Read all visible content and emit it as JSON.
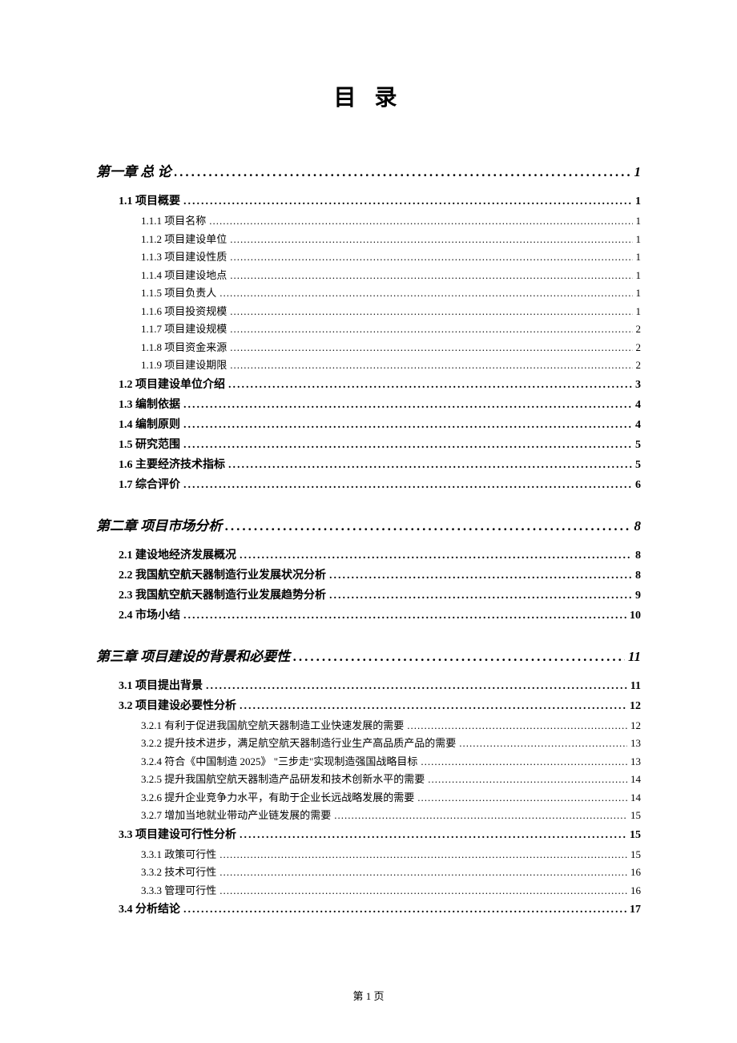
{
  "title": "目 录",
  "footer": "第 1 页",
  "toc": [
    {
      "level": "chapter",
      "label": "第一章 总 论",
      "page": "1"
    },
    {
      "level": "section",
      "label": "1.1 项目概要",
      "page": "1"
    },
    {
      "level": "sub",
      "label": "1.1.1 项目名称",
      "page": "1"
    },
    {
      "level": "sub",
      "label": "1.1.2 项目建设单位",
      "page": "1"
    },
    {
      "level": "sub",
      "label": "1.1.3 项目建设性质",
      "page": "1"
    },
    {
      "level": "sub",
      "label": "1.1.4 项目建设地点",
      "page": "1"
    },
    {
      "level": "sub",
      "label": "1.1.5 项目负责人",
      "page": "1"
    },
    {
      "level": "sub",
      "label": "1.1.6 项目投资规模",
      "page": "1"
    },
    {
      "level": "sub",
      "label": "1.1.7 项目建设规模",
      "page": "2"
    },
    {
      "level": "sub",
      "label": "1.1.8 项目资金来源",
      "page": "2"
    },
    {
      "level": "sub",
      "label": "1.1.9 项目建设期限",
      "page": "2"
    },
    {
      "level": "section",
      "label": "1.2 项目建设单位介绍",
      "page": "3"
    },
    {
      "level": "section",
      "label": "1.3 编制依据",
      "page": "4"
    },
    {
      "level": "section",
      "label": "1.4 编制原则",
      "page": "4"
    },
    {
      "level": "section",
      "label": "1.5 研究范围",
      "page": "5"
    },
    {
      "level": "section",
      "label": "1.6 主要经济技术指标",
      "page": "5"
    },
    {
      "level": "section",
      "label": "1.7 综合评价",
      "page": "6"
    },
    {
      "level": "chapter",
      "label": "第二章 项目市场分析",
      "page": "8"
    },
    {
      "level": "section",
      "label": "2.1 建设地经济发展概况",
      "page": "8"
    },
    {
      "level": "section",
      "label": "2.2 我国航空航天器制造行业发展状况分析",
      "page": "8"
    },
    {
      "level": "section",
      "label": "2.3 我国航空航天器制造行业发展趋势分析",
      "page": "9"
    },
    {
      "level": "section",
      "label": "2.4 市场小结",
      "page": "10"
    },
    {
      "level": "chapter",
      "label": "第三章 项目建设的背景和必要性",
      "page": "11"
    },
    {
      "level": "section",
      "label": "3.1 项目提出背景",
      "page": "11"
    },
    {
      "level": "section",
      "label": "3.2 项目建设必要性分析",
      "page": "12"
    },
    {
      "level": "sub",
      "label": "3.2.1 有利于促进我国航空航天器制造工业快速发展的需要",
      "page": "12"
    },
    {
      "level": "sub",
      "label": "3.2.2 提升技术进步，满足航空航天器制造行业生产高品质产品的需要",
      "page": "13"
    },
    {
      "level": "sub",
      "label": "3.2.4 符合《中国制造 2025》 \"三步走\"实现制造强国战略目标",
      "page": "13"
    },
    {
      "level": "sub",
      "label": "3.2.5 提升我国航空航天器制造产品研发和技术创新水平的需要",
      "page": "14"
    },
    {
      "level": "sub",
      "label": "3.2.6 提升企业竞争力水平，有助于企业长远战略发展的需要",
      "page": "14"
    },
    {
      "level": "sub",
      "label": "3.2.7 增加当地就业带动产业链发展的需要",
      "page": "15"
    },
    {
      "level": "section",
      "label": "3.3 项目建设可行性分析",
      "page": "15"
    },
    {
      "level": "sub",
      "label": "3.3.1 政策可行性",
      "page": "15"
    },
    {
      "level": "sub",
      "label": "3.3.2 技术可行性",
      "page": "16"
    },
    {
      "level": "sub",
      "label": "3.3.3 管理可行性",
      "page": "16"
    },
    {
      "level": "section",
      "label": "3.4 分析结论",
      "page": "17"
    }
  ]
}
